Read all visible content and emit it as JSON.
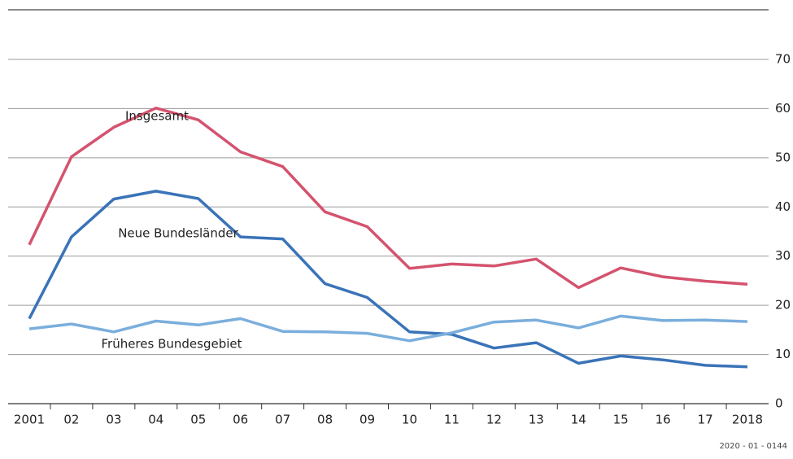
{
  "chart_data": {
    "type": "line",
    "categories": [
      "2001",
      "02",
      "03",
      "04",
      "05",
      "06",
      "07",
      "08",
      "09",
      "10",
      "11",
      "12",
      "13",
      "14",
      "15",
      "16",
      "17",
      "2018"
    ],
    "series": [
      {
        "name": "Insgesamt",
        "color": "#d4536e",
        "values": [
          32.3,
          50.2,
          56.2,
          60.1,
          57.7,
          51.2,
          48.2,
          39.0,
          36.0,
          27.5,
          28.4,
          28.0,
          29.4,
          23.6,
          27.6,
          25.8,
          24.9,
          24.3
        ]
      },
      {
        "name": "Neue Bundesländer",
        "color": "#3a73b8",
        "values": [
          17.3,
          33.9,
          41.6,
          43.2,
          41.7,
          33.9,
          33.5,
          24.4,
          21.6,
          14.6,
          14.1,
          11.3,
          12.4,
          8.2,
          9.7,
          8.9,
          7.8,
          7.5
        ]
      },
      {
        "name": "Früheres Bundesgebiet",
        "color": "#7aaedc",
        "values": [
          15.2,
          16.2,
          14.6,
          16.8,
          16.0,
          17.3,
          14.7,
          14.6,
          14.3,
          12.8,
          14.4,
          16.6,
          17.0,
          15.4,
          17.8,
          16.9,
          17.0,
          16.7
        ]
      }
    ],
    "ylim": [
      0,
      70
    ],
    "yticks": [
      0,
      10,
      20,
      30,
      40,
      50,
      60,
      70
    ],
    "grid": true,
    "footnote": "2020 - 01 - 0144"
  }
}
